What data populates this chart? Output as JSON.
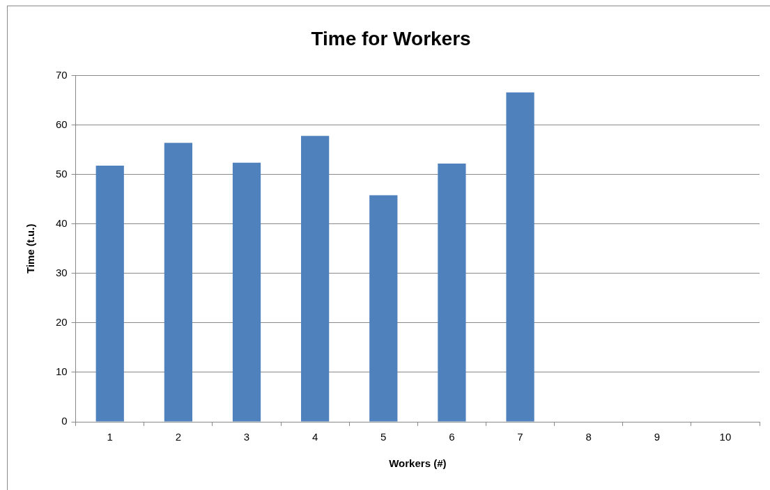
{
  "chart_data": {
    "type": "bar",
    "title": "Time for Workers",
    "xlabel": "Workers (#)",
    "ylabel": "Time (t.u.)",
    "categories": [
      "1",
      "2",
      "3",
      "4",
      "5",
      "6",
      "7",
      "8",
      "9",
      "10"
    ],
    "values": [
      51.8,
      56.4,
      52.4,
      57.8,
      45.8,
      52.2,
      66.6,
      null,
      null,
      null
    ],
    "color": "#4f81bd",
    "ylim": [
      0,
      70
    ],
    "yticks": [
      0,
      10,
      20,
      30,
      40,
      50,
      60,
      70
    ],
    "grid": "y",
    "legend": false
  }
}
